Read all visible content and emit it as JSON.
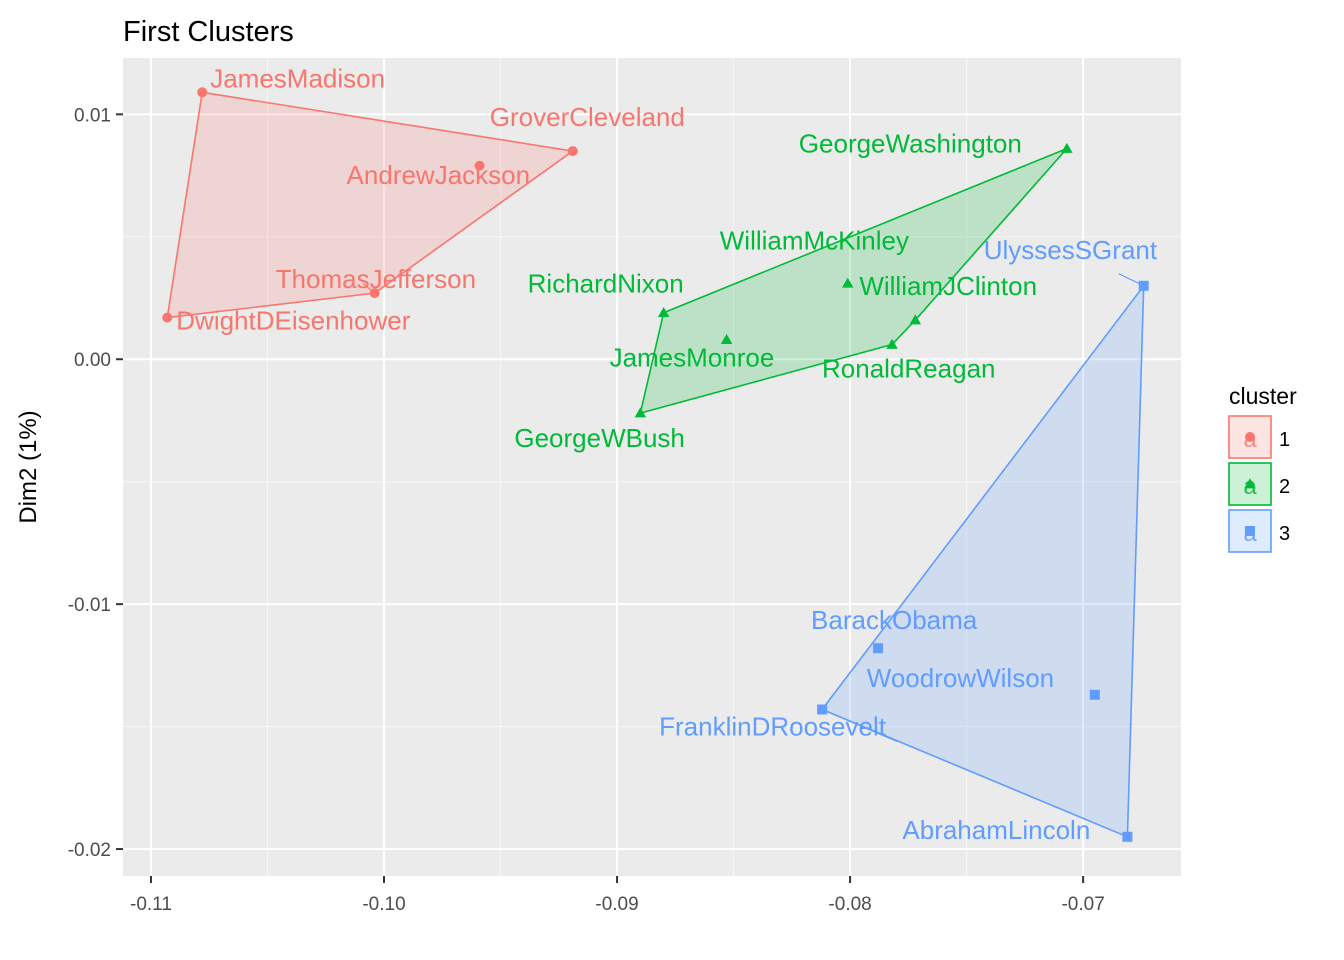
{
  "chart_data": {
    "type": "scatter",
    "title": "First Clusters",
    "xlabel": "",
    "ylabel": "Dim2 (1%)",
    "xlim": [
      -0.1112,
      -0.0658
    ],
    "ylim": [
      -0.0211,
      0.0123
    ],
    "x_ticks": [
      -0.11,
      -0.1,
      -0.09,
      -0.08,
      -0.07
    ],
    "x_tick_labels": [
      "-0.11",
      "-0.10",
      "-0.09",
      "-0.08",
      "-0.07"
    ],
    "y_ticks": [
      -0.02,
      -0.01,
      0.0,
      0.01
    ],
    "y_tick_labels": [
      "-0.02",
      "-0.01",
      "0.00",
      "0.01"
    ],
    "grid": true,
    "legend": {
      "title": "cluster",
      "position": "right",
      "key_glyph": "a",
      "entries": [
        {
          "label": "1",
          "color": "#F8766D",
          "shape": "circle"
        },
        {
          "label": "2",
          "color": "#00BA38",
          "shape": "triangle"
        },
        {
          "label": "3",
          "color": "#619CFF",
          "shape": "square"
        }
      ]
    },
    "series": [
      {
        "cluster": "1",
        "color": "#F8766D",
        "shape": "circle",
        "points": [
          {
            "name": "JamesMadison",
            "x": -0.1078,
            "y": 0.0109
          },
          {
            "name": "GroverCleveland",
            "x": -0.0919,
            "y": 0.0085
          },
          {
            "name": "AndrewJackson",
            "x": -0.0959,
            "y": 0.0079
          },
          {
            "name": "ThomasJefferson",
            "x": -0.1004,
            "y": 0.0027
          },
          {
            "name": "DwightDEisenhower",
            "x": -0.1093,
            "y": 0.0017
          }
        ],
        "hull": [
          "JamesMadison",
          "GroverCleveland",
          "ThomasJefferson",
          "DwightDEisenhower"
        ]
      },
      {
        "cluster": "2",
        "color": "#00BA38",
        "shape": "triangle",
        "points": [
          {
            "name": "GeorgeWashington",
            "x": -0.0707,
            "y": 0.0086
          },
          {
            "name": "WilliamMcKinley",
            "x": -0.0801,
            "y": 0.0031
          },
          {
            "name": "RichardNixon",
            "x": -0.088,
            "y": 0.0019
          },
          {
            "name": "WilliamJClinton",
            "x": -0.0772,
            "y": 0.0016
          },
          {
            "name": "JamesMonroe",
            "x": -0.0853,
            "y": 0.0008
          },
          {
            "name": "RonaldReagan",
            "x": -0.0782,
            "y": 0.0006
          },
          {
            "name": "GeorgeWBush",
            "x": -0.089,
            "y": -0.0022
          }
        ],
        "hull": [
          "GeorgeWashington",
          "WilliamJClinton",
          "RonaldReagan",
          "GeorgeWBush",
          "RichardNixon"
        ]
      },
      {
        "cluster": "3",
        "color": "#619CFF",
        "shape": "square",
        "points": [
          {
            "name": "UlyssesSGrant",
            "x": -0.0674,
            "y": 0.003
          },
          {
            "name": "BarackObama",
            "x": -0.0788,
            "y": -0.0118
          },
          {
            "name": "WoodrowWilson",
            "x": -0.0695,
            "y": -0.0137
          },
          {
            "name": "FranklinDRoosevelt",
            "x": -0.0812,
            "y": -0.0143
          },
          {
            "name": "AbrahamLincoln",
            "x": -0.0681,
            "y": -0.0195
          }
        ],
        "hull": [
          "UlyssesSGrant",
          "AbrahamLincoln",
          "FranklinDRoosevelt"
        ]
      }
    ]
  }
}
